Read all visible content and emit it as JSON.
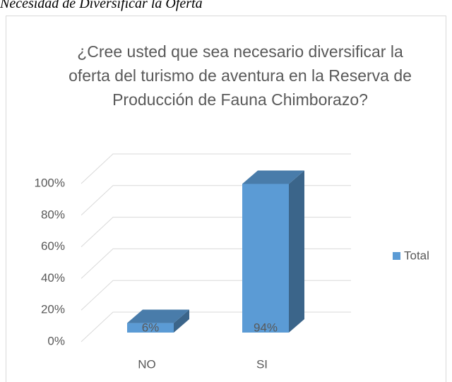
{
  "caption": "Necesidad de Diversificar la Oferta",
  "chart_data": {
    "type": "bar3d",
    "title": "¿Cree usted que sea necesario diversificar la oferta del turismo de aventura en la Reserva de Producción de Fauna Chimborazo?",
    "categories": [
      "NO",
      "SI"
    ],
    "series": [
      {
        "name": "Total",
        "color": "#5b9bd5",
        "values": [
          6,
          94
        ],
        "value_labels": [
          "6%",
          "94%"
        ]
      }
    ],
    "ylim": [
      0,
      100
    ],
    "yticks": [
      {
        "value": 0,
        "label": "0%"
      },
      {
        "value": 20,
        "label": "20%"
      },
      {
        "value": 40,
        "label": "40%"
      },
      {
        "value": 60,
        "label": "60%"
      },
      {
        "value": 80,
        "label": "80%"
      },
      {
        "value": 100,
        "label": "100%"
      }
    ],
    "grid": true,
    "legend": "right"
  }
}
